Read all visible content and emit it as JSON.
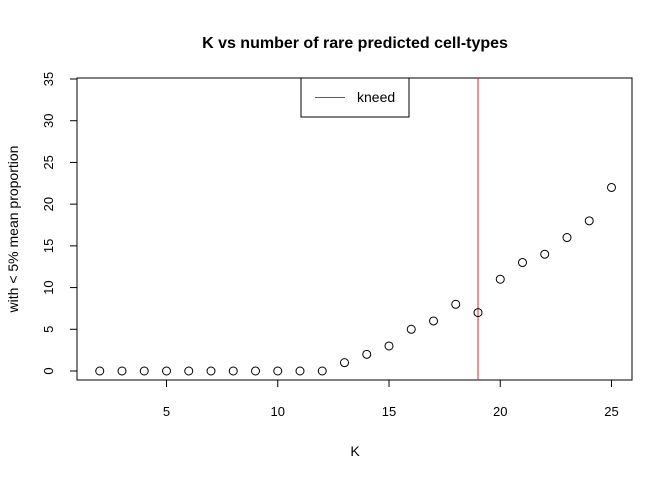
{
  "chart_data": {
    "type": "scatter",
    "title": "K vs number of rare predicted cell-types",
    "xlabel": "K",
    "ylabel": "with < 5% mean proportion",
    "xlim": [
      2,
      25
    ],
    "ylim": [
      0,
      35
    ],
    "xticks": [
      5,
      10,
      15,
      20,
      25
    ],
    "yticks": [
      0,
      5,
      10,
      15,
      20,
      25,
      30,
      35
    ],
    "grid": false,
    "series": [
      {
        "x": [
          2,
          3,
          4,
          5,
          6,
          7,
          8,
          9,
          10,
          11,
          12,
          13,
          14,
          15,
          16,
          17,
          18,
          19,
          20,
          21,
          22,
          23,
          24,
          25
        ],
        "y": [
          0,
          0,
          0,
          0,
          0,
          0,
          0,
          0,
          0,
          0,
          0,
          1,
          2,
          3,
          5,
          6,
          8,
          7,
          11,
          13,
          14,
          16,
          18,
          22
        ]
      }
    ],
    "vline": {
      "x": 19,
      "name": "kneed",
      "color": "#e8202a"
    },
    "legend": {
      "placement": "top-center",
      "entries": [
        "kneed"
      ]
    },
    "colors": {
      "points": "#000000",
      "axis": "#000000"
    }
  }
}
